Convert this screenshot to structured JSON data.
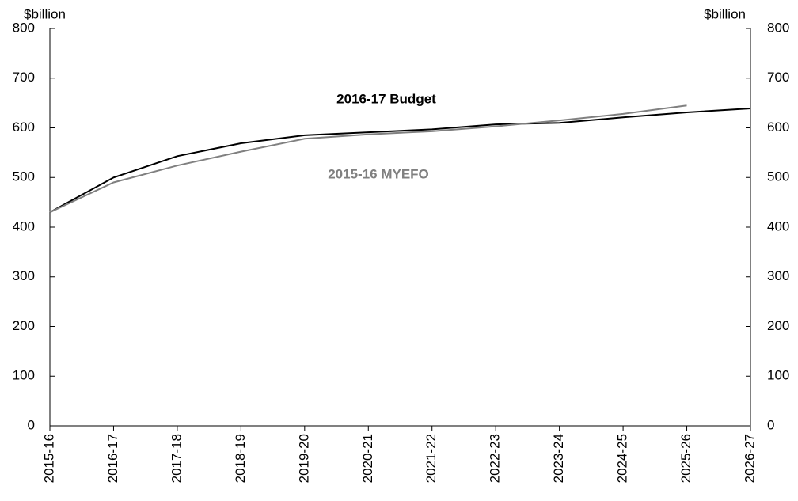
{
  "chart_data": {
    "type": "line",
    "y_label": "$billion",
    "y2_label": "$billion",
    "categories": [
      "2015-16",
      "2016-17",
      "2017-18",
      "2018-19",
      "2019-20",
      "2020-21",
      "2021-22",
      "2022-23",
      "2023-24",
      "2024-25",
      "2025-26",
      "2026-27"
    ],
    "series": [
      {
        "name": "2016-17 Budget",
        "color": "#000000",
        "values": [
          430,
          500,
          543,
          569,
          585,
          591,
          597,
          607,
          610,
          621,
          631,
          639
        ]
      },
      {
        "name": "2015-16 MYEFO",
        "color": "#808080",
        "values": [
          430,
          490,
          524,
          552,
          578,
          587,
          593,
          603,
          615,
          628,
          645,
          null
        ]
      }
    ],
    "ylim": [
      0,
      800
    ],
    "yticks": [
      0,
      100,
      200,
      300,
      400,
      500,
      600,
      700,
      800
    ],
    "y2lim": [
      0,
      800
    ],
    "y2ticks": [
      0,
      100,
      200,
      300,
      400,
      500,
      600,
      700,
      800
    ]
  }
}
